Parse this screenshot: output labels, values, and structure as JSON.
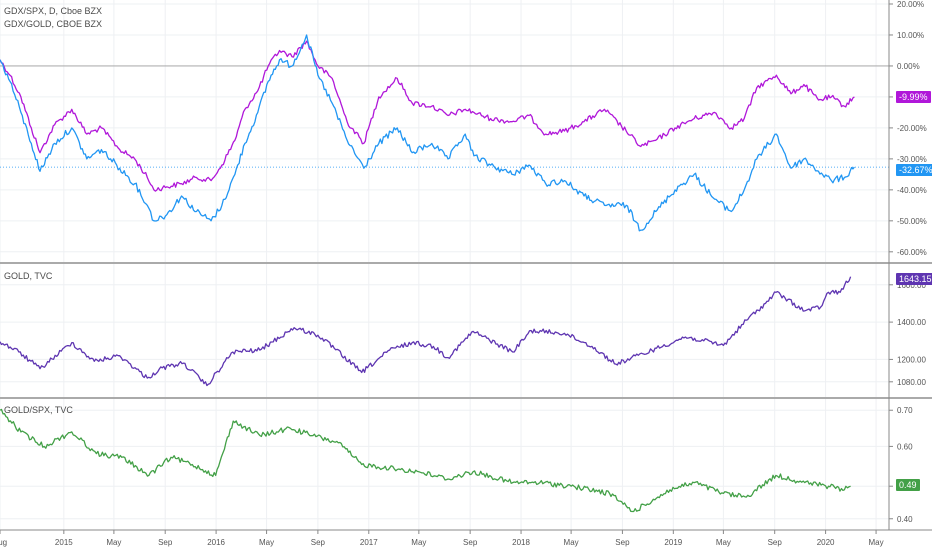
{
  "panes": {
    "main": {
      "title_1": "GDX/SPX, D, Cboe BZX",
      "title_2": "GDX/GOLD, CBOE BZX"
    },
    "gold": {
      "title": "GOLD, TVC"
    },
    "ratio": {
      "title": "GOLD/SPX, TVC"
    }
  },
  "colors": {
    "gdx_spx": "#2196f3",
    "gdx_gold": "#b017d9",
    "gold": "#5e35b1",
    "gold_spx": "#43a047",
    "grid": "#eef0f3",
    "axis": "#888888",
    "zero_line": "#9e9e9e",
    "pane_border": "#555555"
  },
  "badges": {
    "gdx_gold": "-9.99%",
    "gdx_spx": "-32.67%",
    "gold": "1643.15",
    "gold_spx": "0.49"
  },
  "chart_data": [
    {
      "type": "line",
      "ylim": [
        -62,
        20
      ],
      "y_unit": "%",
      "y_ticks": [
        "20.00%",
        "10.00%",
        "0.00%",
        "-10.00%",
        "-20.00%",
        "-30.00%",
        "-40.00%",
        "-50.00%",
        "-60.00%"
      ],
      "y_tick_values": [
        20,
        10,
        0,
        -10,
        -20,
        -30,
        -40,
        -50,
        -60
      ],
      "x": [
        "2014-08-01",
        "2014-08-25",
        "2014-09-20",
        "2014-10-15",
        "2014-11-05",
        "2014-12-10",
        "2015-01-20",
        "2015-02-25",
        "2015-04-01",
        "2015-05-15",
        "2015-06-20",
        "2015-07-20",
        "2015-08-05",
        "2015-09-05",
        "2015-10-10",
        "2015-11-15",
        "2015-12-20",
        "2016-01-15",
        "2016-02-15",
        "2016-03-10",
        "2016-04-10",
        "2016-05-05",
        "2016-06-01",
        "2016-07-01",
        "2016-08-05",
        "2016-09-01",
        "2016-10-05",
        "2016-11-10",
        "2016-12-20",
        "2017-01-25",
        "2017-03-10",
        "2017-04-15",
        "2017-06-01",
        "2017-07-10",
        "2017-08-20",
        "2017-09-10",
        "2017-10-20",
        "2017-12-10",
        "2018-01-20",
        "2018-03-01",
        "2018-04-15",
        "2018-06-01",
        "2018-07-20",
        "2018-09-10",
        "2018-10-15",
        "2018-11-20",
        "2019-01-05",
        "2019-02-20",
        "2019-04-10",
        "2019-05-20",
        "2019-06-20",
        "2019-07-20",
        "2019-09-05",
        "2019-10-10",
        "2019-11-10",
        "2019-12-15",
        "2020-01-15",
        "2020-02-15",
        "2020-03-10"
      ],
      "series": [
        {
          "name": "GDX/SPX",
          "values": [
            2,
            -5,
            -15,
            -25,
            -34,
            -25,
            -20,
            -30,
            -27,
            -33,
            -38,
            -45,
            -50,
            -48,
            -42,
            -47,
            -50,
            -45,
            -35,
            -25,
            -15,
            -5,
            2,
            0,
            10,
            -3,
            -12,
            -24,
            -33,
            -25,
            -20,
            -28,
            -25,
            -30,
            -22,
            -29,
            -32,
            -35,
            -32,
            -38,
            -37,
            -42,
            -45,
            -45,
            -53,
            -47,
            -40,
            -35,
            -43,
            -47,
            -40,
            -30,
            -22,
            -33,
            -30,
            -34,
            -37,
            -36,
            -32.67
          ]
        },
        {
          "name": "GDX/GOLD",
          "values": [
            2,
            -3,
            -10,
            -20,
            -28,
            -19,
            -14,
            -22,
            -20,
            -27,
            -30,
            -36,
            -40,
            -39,
            -38,
            -36,
            -37,
            -32,
            -24,
            -14,
            -8,
            0,
            5,
            3,
            8,
            0,
            -4,
            -18,
            -25,
            -10,
            -4,
            -12,
            -13,
            -16,
            -14,
            -15,
            -17,
            -18,
            -16,
            -22,
            -21,
            -18,
            -14,
            -21,
            -26,
            -24,
            -20,
            -17,
            -15,
            -20,
            -17,
            -7,
            -3,
            -9,
            -6,
            -11,
            -10,
            -13,
            -9.99
          ]
        }
      ]
    },
    {
      "type": "line",
      "ylim": [
        1020,
        1690
      ],
      "y_ticks": [
        "1600.00",
        "1400.00",
        "1200.00",
        "1080.00"
      ],
      "y_tick_values": [
        1600,
        1400,
        1200,
        1080
      ],
      "x": [
        "2014-08-01",
        "2014-09-15",
        "2014-11-05",
        "2015-01-20",
        "2015-03-15",
        "2015-05-15",
        "2015-07-20",
        "2015-08-25",
        "2015-10-15",
        "2015-12-10",
        "2016-02-10",
        "2016-04-15",
        "2016-07-06",
        "2016-09-01",
        "2016-10-10",
        "2016-12-15",
        "2017-02-20",
        "2017-04-15",
        "2017-06-05",
        "2017-07-10",
        "2017-09-08",
        "2017-12-12",
        "2018-01-25",
        "2018-04-15",
        "2018-06-20",
        "2018-08-16",
        "2018-10-20",
        "2019-01-30",
        "2019-03-15",
        "2019-05-01",
        "2019-06-25",
        "2019-08-10",
        "2019-09-04",
        "2019-11-12",
        "2019-12-20",
        "2020-01-08",
        "2020-02-05",
        "2020-03-01"
      ],
      "series": [
        {
          "name": "GOLD, TVC",
          "values": [
            1295,
            1240,
            1150,
            1290,
            1190,
            1220,
            1100,
            1155,
            1180,
            1060,
            1240,
            1250,
            1370,
            1330,
            1260,
            1130,
            1250,
            1290,
            1270,
            1210,
            1350,
            1240,
            1355,
            1340,
            1270,
            1175,
            1230,
            1320,
            1300,
            1275,
            1410,
            1500,
            1560,
            1460,
            1480,
            1560,
            1560,
            1643.15
          ]
        }
      ]
    },
    {
      "type": "line",
      "ylim": [
        0.38,
        0.72
      ],
      "y_ticks": [
        "0.70",
        "0.60",
        "0.49",
        "0.40"
      ],
      "y_tick_values": [
        0.7,
        0.6,
        0.49,
        0.4
      ],
      "x": [
        "2014-08-01",
        "2014-09-20",
        "2014-11-15",
        "2015-01-20",
        "2015-03-20",
        "2015-05-20",
        "2015-07-24",
        "2015-09-15",
        "2015-11-05",
        "2015-12-31",
        "2016-02-11",
        "2016-04-15",
        "2016-06-27",
        "2016-08-20",
        "2016-10-20",
        "2016-12-15",
        "2017-02-20",
        "2017-05-01",
        "2017-07-10",
        "2017-09-08",
        "2017-12-12",
        "2018-02-15",
        "2018-05-01",
        "2018-08-01",
        "2018-09-28",
        "2018-12-24",
        "2019-02-20",
        "2019-05-01",
        "2019-06-25",
        "2019-09-04",
        "2019-11-12",
        "2020-01-08",
        "2020-02-15",
        "2020-03-01"
      ],
      "series": [
        {
          "name": "GOLD/SPX, TVC",
          "values": [
            0.7,
            0.64,
            0.6,
            0.64,
            0.58,
            0.57,
            0.52,
            0.57,
            0.55,
            0.52,
            0.67,
            0.63,
            0.65,
            0.63,
            0.61,
            0.55,
            0.54,
            0.53,
            0.51,
            0.53,
            0.5,
            0.5,
            0.49,
            0.47,
            0.42,
            0.48,
            0.5,
            0.47,
            0.46,
            0.52,
            0.5,
            0.49,
            0.48,
            0.49
          ]
        }
      ]
    }
  ],
  "x_axis": {
    "labels": [
      "Aug",
      "2015",
      "May",
      "Sep",
      "2016",
      "May",
      "Sep",
      "2017",
      "May",
      "Sep",
      "2018",
      "May",
      "Sep",
      "2019",
      "May",
      "Sep",
      "2020",
      "May"
    ],
    "dates": [
      "2014-08-01",
      "2015-01-01",
      "2015-05-01",
      "2015-09-01",
      "2016-01-01",
      "2016-05-01",
      "2016-09-01",
      "2017-01-01",
      "2017-05-01",
      "2017-09-01",
      "2018-01-01",
      "2018-05-01",
      "2018-09-01",
      "2019-01-01",
      "2019-05-01",
      "2019-09-01",
      "2020-01-01",
      "2020-05-01"
    ],
    "range": [
      "2014-08-01",
      "2020-06-01"
    ]
  }
}
